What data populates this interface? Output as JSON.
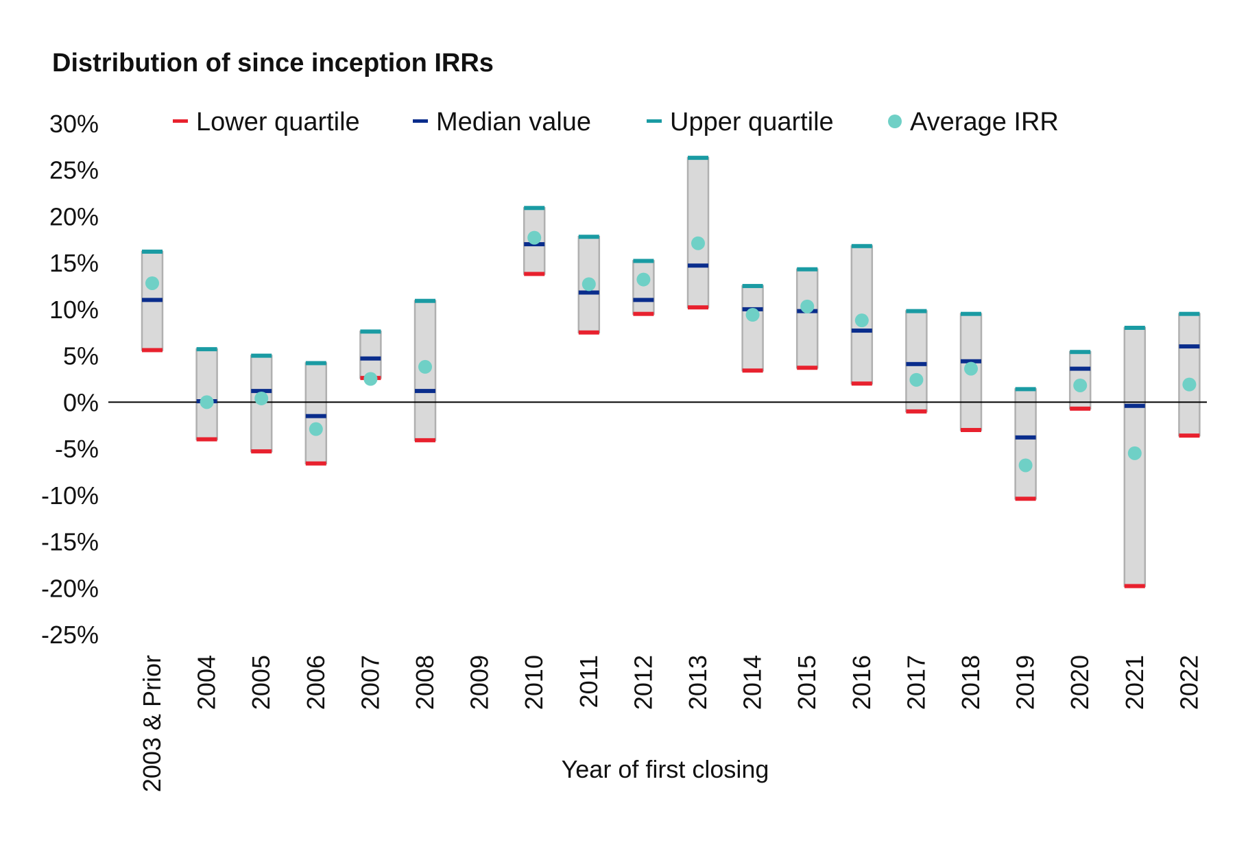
{
  "chart_data": {
    "type": "range-bar",
    "title": "Distribution of since inception IRRs",
    "xlabel": "Year of first closing",
    "ylabel": "",
    "ylim": [
      -25,
      30
    ],
    "yticks": [
      30,
      25,
      20,
      15,
      10,
      5,
      0,
      -5,
      -10,
      -15,
      -20,
      -25
    ],
    "ytick_labels": [
      "30%",
      "25%",
      "20%",
      "15%",
      "10%",
      "5%",
      "0%",
      "-5%",
      "-10%",
      "-15%",
      "-20%",
      "-25%"
    ],
    "grid": false,
    "legend_position": "top",
    "legend": [
      {
        "key": "lower",
        "label": "Lower quartile",
        "marker": "dash",
        "color": "#E8212E"
      },
      {
        "key": "median",
        "label": "Median value",
        "marker": "dash",
        "color": "#0A2D8C"
      },
      {
        "key": "upper",
        "label": "Upper quartile",
        "marker": "dash",
        "color": "#1A9BA3"
      },
      {
        "key": "average",
        "label": "Average IRR",
        "marker": "circle",
        "color": "#6FD0C6"
      }
    ],
    "colors": {
      "range_fill": "#D9D9D9",
      "range_stroke": "#B0B0B0",
      "zero_line": "#000000"
    },
    "categories": [
      "2003 & Prior",
      "2004",
      "2005",
      "2006",
      "2007",
      "2008",
      "2009",
      "2010",
      "2011",
      "2012",
      "2013",
      "2014",
      "2015",
      "2016",
      "2017",
      "2018",
      "2019",
      "2020",
      "2021",
      "2022"
    ],
    "series": [
      {
        "key": "lower",
        "name": "Lower quartile",
        "values": [
          5.6,
          -4.0,
          -5.3,
          -6.6,
          2.6,
          -4.1,
          null,
          13.8,
          7.5,
          9.5,
          10.2,
          3.4,
          3.7,
          2.0,
          -1.0,
          -3.0,
          -10.4,
          -0.7,
          -19.8,
          -3.6
        ]
      },
      {
        "key": "median",
        "name": "Median value",
        "values": [
          11.0,
          0.1,
          1.2,
          -1.5,
          4.7,
          1.2,
          null,
          17.0,
          11.8,
          11.0,
          14.7,
          10.0,
          9.8,
          7.7,
          4.1,
          4.4,
          -3.8,
          3.6,
          -0.4,
          6.0
        ]
      },
      {
        "key": "upper",
        "name": "Upper quartile",
        "values": [
          16.2,
          5.7,
          5.0,
          4.2,
          7.6,
          10.9,
          null,
          20.9,
          17.8,
          15.2,
          26.3,
          12.5,
          14.3,
          16.8,
          9.8,
          9.5,
          1.4,
          5.4,
          8.0,
          9.5
        ]
      },
      {
        "key": "average",
        "name": "Average IRR",
        "values": [
          12.8,
          0.0,
          0.4,
          -2.9,
          2.5,
          3.8,
          null,
          17.7,
          12.7,
          13.2,
          17.1,
          9.4,
          10.3,
          8.8,
          2.4,
          3.6,
          -6.8,
          1.8,
          -5.5,
          1.9
        ]
      }
    ]
  }
}
